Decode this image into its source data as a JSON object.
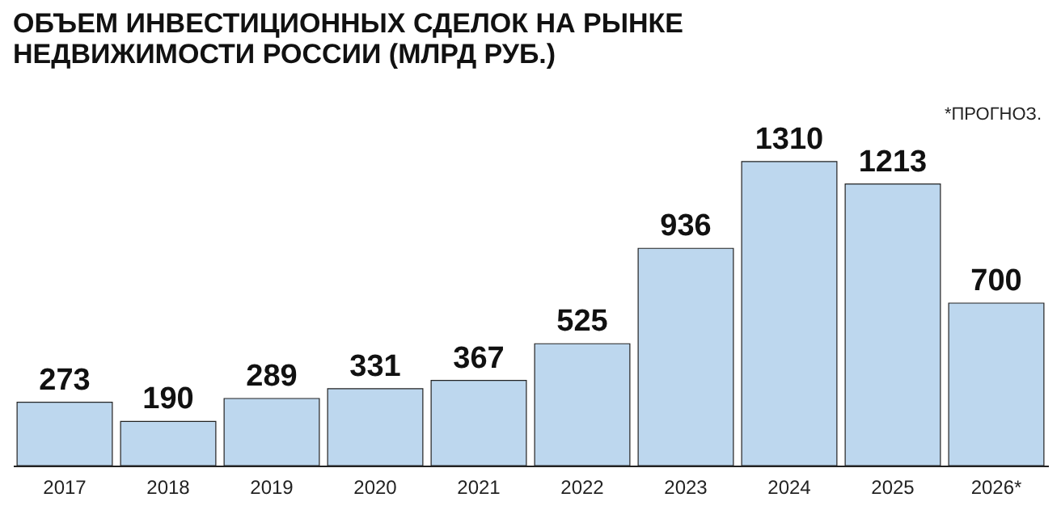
{
  "chart_data": {
    "type": "bar",
    "title": [
      "ОБЪЕМ ИНВЕСТИЦИОННЫХ СДЕЛОК НА РЫНКЕ",
      "НЕДВИЖИМОСТИ РОССИИ (МЛРД РУБ.)"
    ],
    "categories": [
      "2017",
      "2018",
      "2019",
      "2020",
      "2021",
      "2022",
      "2023",
      "2024",
      "2025",
      "2026*"
    ],
    "values": [
      273,
      190,
      289,
      331,
      367,
      525,
      936,
      1310,
      1213,
      700
    ],
    "color": "#bdd7ee",
    "data_labels": true,
    "annotations": [
      "*ПРОГНОЗ."
    ]
  }
}
